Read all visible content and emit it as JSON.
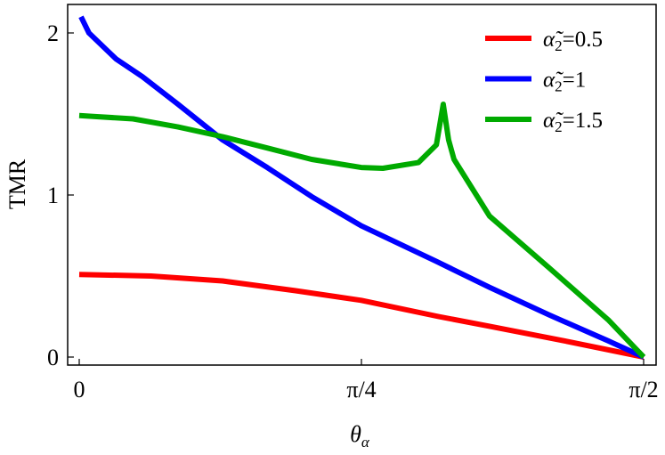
{
  "chart_data": {
    "type": "line",
    "title": "",
    "xlabel": "θα",
    "ylabel": "TMR",
    "xlim": [
      0,
      1.5708
    ],
    "ylim": [
      -0.05,
      2.2
    ],
    "x_ticks": [
      {
        "value": 0,
        "label": "0"
      },
      {
        "value": 0.7854,
        "label": "π/4"
      },
      {
        "value": 1.5708,
        "label": "π/2"
      }
    ],
    "y_ticks": [
      {
        "value": 0,
        "label": "0"
      },
      {
        "value": 1,
        "label": "1"
      },
      {
        "value": 2,
        "label": "2"
      }
    ],
    "grid": false,
    "legend_position": "top-right",
    "series": [
      {
        "name": "α̃2=0.5",
        "color": "#ff0000",
        "x": [
          0,
          0.2,
          0.399,
          0.6,
          0.785,
          1.0,
          1.142,
          1.35,
          1.571
        ],
        "y": [
          0.51,
          0.5,
          0.47,
          0.41,
          0.35,
          0.25,
          0.19,
          0.1,
          0
        ]
      },
      {
        "name": "α̃2=1",
        "color": "#0000ff",
        "x": [
          0.005,
          0.027,
          0.102,
          0.176,
          0.275,
          0.399,
          0.523,
          0.647,
          0.785,
          0.994,
          1.142,
          1.308,
          1.472,
          1.571
        ],
        "y": [
          2.1,
          2.0,
          1.84,
          1.73,
          1.56,
          1.34,
          1.17,
          0.99,
          0.81,
          0.59,
          0.43,
          0.26,
          0.1,
          0
        ]
      },
      {
        "name": "α̃2=1.5",
        "color": "#00aa00",
        "x": [
          0,
          0.15,
          0.275,
          0.399,
          0.523,
          0.647,
          0.785,
          0.845,
          0.944,
          0.994,
          1.013,
          1.028,
          1.043,
          1.142,
          1.308,
          1.472,
          1.571
        ],
        "y": [
          1.49,
          1.47,
          1.42,
          1.36,
          1.29,
          1.22,
          1.17,
          1.165,
          1.2,
          1.31,
          1.56,
          1.34,
          1.22,
          0.87,
          0.55,
          0.23,
          0
        ]
      }
    ]
  }
}
